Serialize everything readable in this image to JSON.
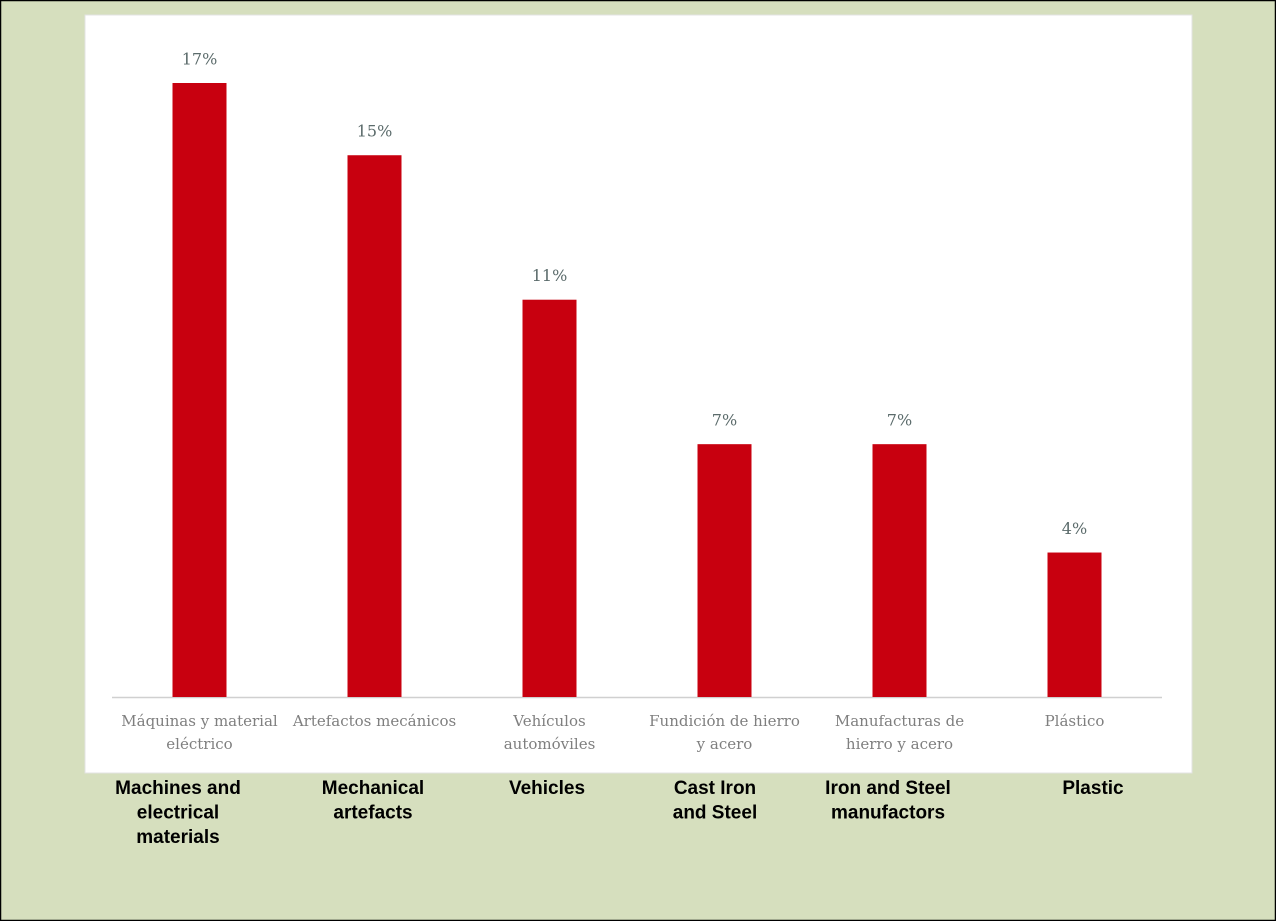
{
  "chart_data": {
    "type": "bar",
    "categories": [
      [
        "Máquinas y material",
        "eléctrico"
      ],
      [
        "Artefactos mecánicos"
      ],
      [
        "Vehículos",
        "automóviles"
      ],
      [
        "Fundición de hierro",
        "y acero"
      ],
      [
        "Manufacturas de",
        "hierro y acero"
      ],
      [
        "Plástico"
      ]
    ],
    "english_labels": [
      [
        "Machines and",
        "electrical",
        "materials"
      ],
      [
        "Mechanical",
        "artefacts"
      ],
      [
        "Vehicles"
      ],
      [
        "Cast Iron",
        "and Steel"
      ],
      [
        "Iron and Steel",
        "manufactors"
      ],
      [
        "Plastic"
      ]
    ],
    "values": [
      17,
      15,
      11,
      7,
      7,
      4
    ],
    "value_labels": [
      "17%",
      "15%",
      "11%",
      "7%",
      "7%",
      "4%"
    ],
    "color": "#c8000f"
  }
}
